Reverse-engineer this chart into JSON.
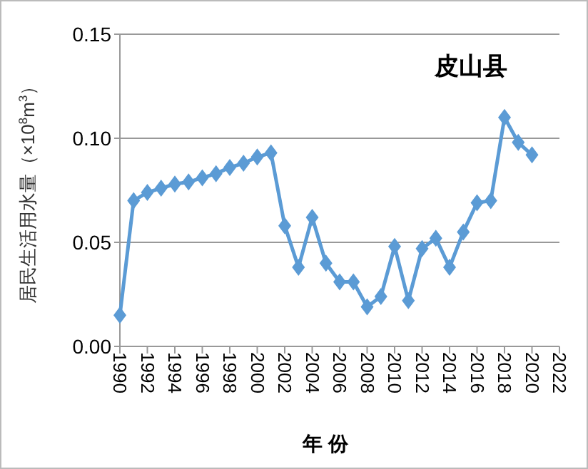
{
  "chart_data": {
    "type": "line",
    "title": "皮山县",
    "xlabel": "年 份",
    "ylabel": "居民生活用水量（×10$^{8}$m$^{3}$）",
    "x": [
      1990,
      1991,
      1992,
      1993,
      1994,
      1995,
      1996,
      1997,
      1998,
      1999,
      2000,
      2001,
      2002,
      2003,
      2004,
      2005,
      2006,
      2007,
      2008,
      2009,
      2010,
      2011,
      2012,
      2013,
      2014,
      2015,
      2016,
      2017,
      2018,
      2019,
      2020
    ],
    "series": [
      {
        "color": "#5b9bd5",
        "values": [
          0.015,
          0.07,
          0.074,
          0.076,
          0.078,
          0.079,
          0.081,
          0.083,
          0.086,
          0.088,
          0.091,
          0.093,
          0.058,
          0.038,
          0.062,
          0.04,
          0.031,
          0.031,
          0.019,
          0.024,
          0.048,
          0.022,
          0.047,
          0.052,
          0.038,
          0.055,
          0.069,
          0.07,
          0.11,
          0.098,
          0.092
        ]
      }
    ],
    "xlim": [
      1990,
      2022
    ],
    "xticks": [
      1990,
      1992,
      1994,
      1996,
      1998,
      2000,
      2002,
      2004,
      2006,
      2008,
      2010,
      2012,
      2014,
      2016,
      2018,
      2020,
      2022
    ],
    "ylim": [
      0,
      0.15
    ],
    "yticks": [
      {
        "value": 0,
        "label": "0.00"
      },
      {
        "value": 0.05,
        "label": "0.05"
      },
      {
        "value": 0.1,
        "label": "0.10"
      },
      {
        "value": 0.15,
        "label": "0.15"
      }
    ],
    "grid": "y",
    "marker": "diamond",
    "line_style": "solid"
  }
}
